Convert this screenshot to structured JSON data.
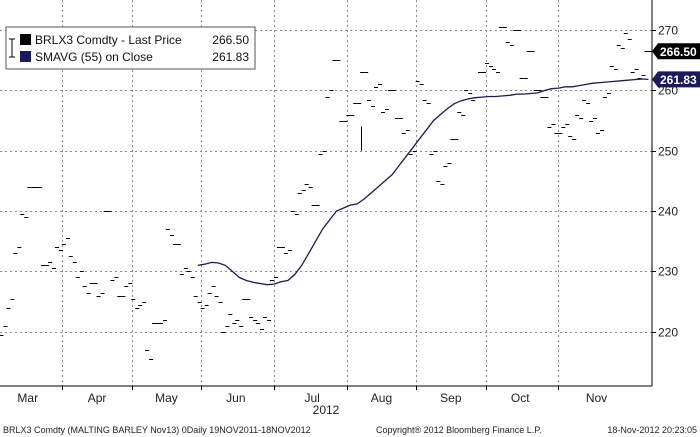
{
  "chart_data": {
    "type": "line",
    "ylim": [
      211,
      275
    ],
    "yticks": [
      220,
      230,
      240,
      250,
      260,
      270
    ],
    "months": [
      {
        "label": "Mar",
        "x": 3.5
      },
      {
        "label": "Apr",
        "x": 13.5
      },
      {
        "label": "May",
        "x": 23.5
      },
      {
        "label": "Jun",
        "x": 33.5
      },
      {
        "label": "Jul",
        "x": 44.5
      },
      {
        "label": "Aug",
        "x": 54.5
      },
      {
        "label": "Sep",
        "x": 64.5
      },
      {
        "label": "Oct",
        "x": 74.5
      },
      {
        "label": "Nov",
        "x": 85.5
      }
    ],
    "year_label": "2012",
    "x_range": [
      -0.5,
      93.5
    ],
    "grid": true,
    "legend": {
      "position": "top-left",
      "entries": [
        {
          "name": "BRLX3 Comdty - Last Price",
          "value": "266.50",
          "color": "#000000"
        },
        {
          "name": "SMAVG (55) on Close",
          "value": "261.83",
          "color": "#1a1a5e"
        }
      ]
    },
    "tags": [
      {
        "value": 266.5,
        "label": "266.50",
        "bg": "#000000",
        "fg": "#ffffff"
      },
      {
        "value": 261.83,
        "label": "261.83",
        "bg": "#1a1a5e",
        "fg": "#ffffff"
      }
    ],
    "series": [
      {
        "name": "BRLX3 Comdty - Last Price",
        "style": "open-close",
        "color": "#000000",
        "points": [
          [
            0,
            219.5,
            221
          ],
          [
            1,
            224,
            225.5
          ],
          [
            2,
            233,
            234
          ],
          [
            3,
            239.5,
            239
          ],
          [
            4,
            244,
            244
          ],
          [
            5,
            244,
            244
          ],
          [
            6,
            231,
            231
          ],
          [
            7,
            231.5,
            230.5
          ],
          [
            8,
            234,
            233.5
          ],
          [
            9,
            234.5,
            235.5
          ],
          [
            10,
            232.5,
            231.5
          ],
          [
            11,
            229,
            230
          ],
          [
            12,
            227.5,
            226.5
          ],
          [
            13,
            228,
            228
          ],
          [
            14,
            226,
            226.5
          ],
          [
            15,
            240,
            240
          ],
          [
            16,
            228.5,
            229
          ],
          [
            17,
            226,
            226
          ],
          [
            18,
            227.5,
            228
          ],
          [
            19,
            225.5,
            224
          ],
          [
            20,
            224.5,
            225
          ],
          [
            21,
            217,
            215.5
          ],
          [
            22,
            221.5,
            221.5
          ],
          [
            23,
            221.5,
            222
          ],
          [
            24,
            237,
            236
          ],
          [
            25,
            234.5,
            234.5
          ],
          [
            26,
            229.5,
            230.5
          ],
          [
            27,
            230,
            229
          ],
          [
            28,
            226,
            225
          ],
          [
            29,
            224,
            224.5
          ],
          [
            30,
            226.5,
            227.5
          ],
          [
            31,
            226,
            225
          ],
          [
            32,
            220,
            221
          ],
          [
            33,
            223,
            221.5
          ],
          [
            34,
            222,
            221
          ],
          [
            35,
            225.5,
            225.5
          ],
          [
            36,
            222.5,
            222
          ],
          [
            37,
            221.5,
            220.5
          ],
          [
            38,
            222.5,
            222
          ],
          [
            39,
            228.5,
            229
          ],
          [
            40,
            234,
            234
          ],
          [
            41,
            233,
            233.5
          ],
          [
            42,
            240,
            239.5
          ],
          [
            43,
            243,
            243.5
          ],
          [
            44,
            244.5,
            244
          ],
          [
            45,
            241,
            241
          ],
          [
            46,
            249.5,
            250
          ],
          [
            47,
            259,
            260
          ],
          [
            48,
            265,
            265
          ],
          [
            49,
            255,
            255
          ],
          [
            50,
            256,
            256
          ],
          [
            51,
            258,
            258
          ],
          [
            52,
            263,
            263
          ],
          [
            53,
            258.5,
            257.5
          ],
          [
            54,
            260.5,
            261
          ],
          [
            55,
            256.5,
            257
          ],
          [
            56,
            260,
            260
          ],
          [
            57,
            255.5,
            255.5
          ],
          [
            58,
            253,
            253.5
          ],
          [
            59,
            249.5,
            250
          ],
          [
            60,
            261.5,
            261
          ],
          [
            61,
            258.5,
            258
          ],
          [
            62,
            249.5,
            250
          ],
          [
            63,
            245,
            244.5
          ],
          [
            64,
            247.5,
            248
          ],
          [
            65,
            252,
            252
          ],
          [
            66,
            256.5,
            256
          ],
          [
            67,
            260,
            259.5
          ],
          [
            68,
            258.5,
            259
          ],
          [
            69,
            263,
            263
          ],
          [
            70,
            264.5,
            264
          ],
          [
            71,
            263.5,
            263
          ],
          [
            72,
            270.5,
            270.5
          ],
          [
            73,
            268,
            267.5
          ],
          [
            74,
            270,
            270
          ],
          [
            75,
            262,
            262
          ],
          [
            76,
            266.5,
            266.5
          ],
          [
            77,
            260,
            260
          ],
          [
            78,
            259,
            259
          ],
          [
            79,
            254,
            254.5
          ],
          [
            80,
            253,
            253
          ],
          [
            81,
            254,
            254.5
          ],
          [
            82,
            252.5,
            252
          ],
          [
            83,
            256,
            255.5
          ],
          [
            84,
            258.5,
            258
          ],
          [
            85,
            255,
            255.5
          ],
          [
            86,
            253,
            253.5
          ],
          [
            87,
            259,
            259.5
          ],
          [
            88,
            264,
            263.5
          ],
          [
            89,
            267.5,
            267
          ],
          [
            90,
            269.5,
            268.5
          ],
          [
            91,
            263,
            263.5
          ],
          [
            92,
            262,
            262.5
          ],
          [
            93,
            266.5,
            266.5
          ]
        ],
        "spike": {
          "x": 51.5,
          "low": 250,
          "high": 254
        }
      },
      {
        "name": "SMAVG (55) on Close",
        "style": "line",
        "color": "#1a1a5e",
        "x": [
          28,
          29,
          30,
          31,
          32,
          33,
          34,
          35,
          36,
          37,
          38,
          39,
          40,
          41,
          42,
          43,
          44,
          45,
          46,
          47,
          48,
          49,
          50,
          51,
          52,
          53,
          54,
          55,
          56,
          57,
          58,
          59,
          60,
          61,
          62,
          63,
          64,
          65,
          66,
          67,
          68,
          69,
          70,
          71,
          72,
          73,
          74,
          75,
          76,
          77,
          78,
          79,
          80,
          81,
          82,
          83,
          84,
          85,
          86,
          87,
          88,
          89,
          90,
          91,
          92,
          93
        ],
        "y": [
          231,
          231.2,
          231.5,
          231.4,
          231,
          230,
          229,
          228.5,
          228.2,
          228,
          227.8,
          227.9,
          228.3,
          228.5,
          229.5,
          231,
          233,
          235,
          237,
          238.5,
          240,
          240.5,
          241,
          241.2,
          242,
          243,
          244,
          245,
          246,
          247.5,
          249,
          250.5,
          252,
          253.5,
          255,
          256,
          257,
          257.8,
          258.3,
          258.6,
          258.8,
          258.9,
          259,
          259,
          259.1,
          259.2,
          259.4,
          259.4,
          259.5,
          259.6,
          260,
          260.3,
          260.4,
          260.6,
          260.6,
          260.8,
          261,
          261.2,
          261.3,
          261.4,
          261.5,
          261.6,
          261.7,
          261.8,
          261.9,
          261.83
        ]
      }
    ]
  },
  "footer": {
    "left": "BRLX3 Comdty (MALTING BARLEY    Nov13) 0Daily 19NOV2011-18NOV2012",
    "center": "Copyright® 2012 Bloomberg Finance L.P.",
    "right": "18-Nov-2012 20:23:05"
  }
}
